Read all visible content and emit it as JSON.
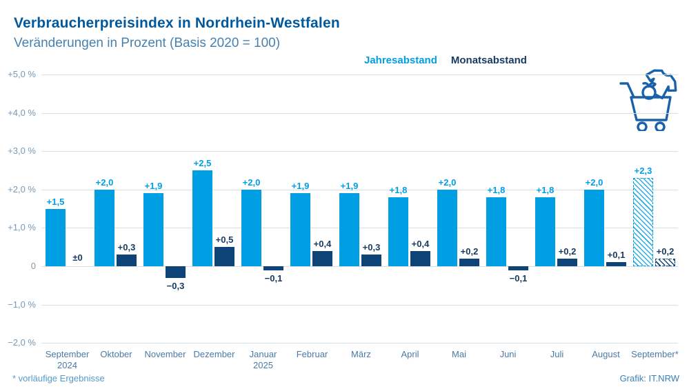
{
  "header": {
    "title": "Verbraucherpreisindex in Nordrhein-Westfalen",
    "subtitle": "Veränderungen in Prozent (Basis 2020 = 100)"
  },
  "legend": {
    "items": [
      {
        "label": "Jahresabstand",
        "color": "#009ee3"
      },
      {
        "label": "Monatsabstand",
        "color": "#16395f"
      }
    ]
  },
  "icons": {
    "shopping_icon": "tshirt-and-shopping-cart-with-apple",
    "icon_color": "#1961ab"
  },
  "footer": {
    "footnote": "*  vorläufige Ergebnisse",
    "credit": "Grafik: IT.NRW"
  },
  "colors": {
    "series_jahresabstand": "#009ee3",
    "series_monatsabstand": "#0e4378",
    "title": "#00599e",
    "subtitle": "#4681b0",
    "gridline": "#d9dee3",
    "axis_labels": "#7699b8",
    "month_labels": "#4a7aa6"
  },
  "chart_data": {
    "type": "bar",
    "title": "Verbraucherpreisindex in Nordrhein-Westfalen",
    "subtitle": "Veränderungen in Prozent (Basis 2020 = 100)",
    "ylabel": "",
    "xlabel": "",
    "ylim": [
      -2.0,
      5.0
    ],
    "grid": true,
    "legend_position": "top-right",
    "yticks": {
      "values": [
        5,
        4,
        3,
        2,
        1,
        0,
        -1,
        -2
      ],
      "labels": [
        "+5,0 %",
        "+4,0 %",
        "+3,0 %",
        "+2,0 %",
        "+1,0 %",
        "0",
        "−1,0 %",
        "−2,0 %"
      ]
    },
    "categories": [
      {
        "month": "September",
        "year": "2024",
        "preliminary": false
      },
      {
        "month": "Oktober",
        "year": "",
        "preliminary": false
      },
      {
        "month": "November",
        "year": "",
        "preliminary": false
      },
      {
        "month": "Dezember",
        "year": "",
        "preliminary": false
      },
      {
        "month": "Januar",
        "year": "2025",
        "preliminary": false
      },
      {
        "month": "Februar",
        "year": "",
        "preliminary": false
      },
      {
        "month": "März",
        "year": "",
        "preliminary": false
      },
      {
        "month": "April",
        "year": "",
        "preliminary": false
      },
      {
        "month": "Mai",
        "year": "",
        "preliminary": false
      },
      {
        "month": "Juni",
        "year": "",
        "preliminary": false
      },
      {
        "month": "Juli",
        "year": "",
        "preliminary": false
      },
      {
        "month": "August",
        "year": "",
        "preliminary": false
      },
      {
        "month": "September*",
        "year": "",
        "preliminary": true
      }
    ],
    "series": [
      {
        "name": "Jahresabstand",
        "color": "#009ee3",
        "values": [
          1.5,
          2.0,
          1.9,
          2.5,
          2.0,
          1.9,
          1.9,
          1.8,
          2.0,
          1.8,
          1.8,
          2.0,
          2.3
        ],
        "labels": [
          "+1,5",
          "+2,0",
          "+1,9",
          "+2,5",
          "+2,0",
          "+1,9",
          "+1,9",
          "+1,8",
          "+2,0",
          "+1,8",
          "+1,8",
          "+2,0",
          "+2,3"
        ]
      },
      {
        "name": "Monatsabstand",
        "color": "#0e4378",
        "values": [
          0.0,
          0.3,
          -0.3,
          0.5,
          -0.1,
          0.4,
          0.3,
          0.4,
          0.2,
          -0.1,
          0.2,
          0.1,
          0.2
        ],
        "labels": [
          "±0",
          "+0,3",
          "−0,3",
          "+0,5",
          "−0,1",
          "+0,4",
          "+0,3",
          "+0,4",
          "+0,2",
          "−0,1",
          "+0,2",
          "+0,1",
          "+0,2"
        ]
      }
    ]
  }
}
